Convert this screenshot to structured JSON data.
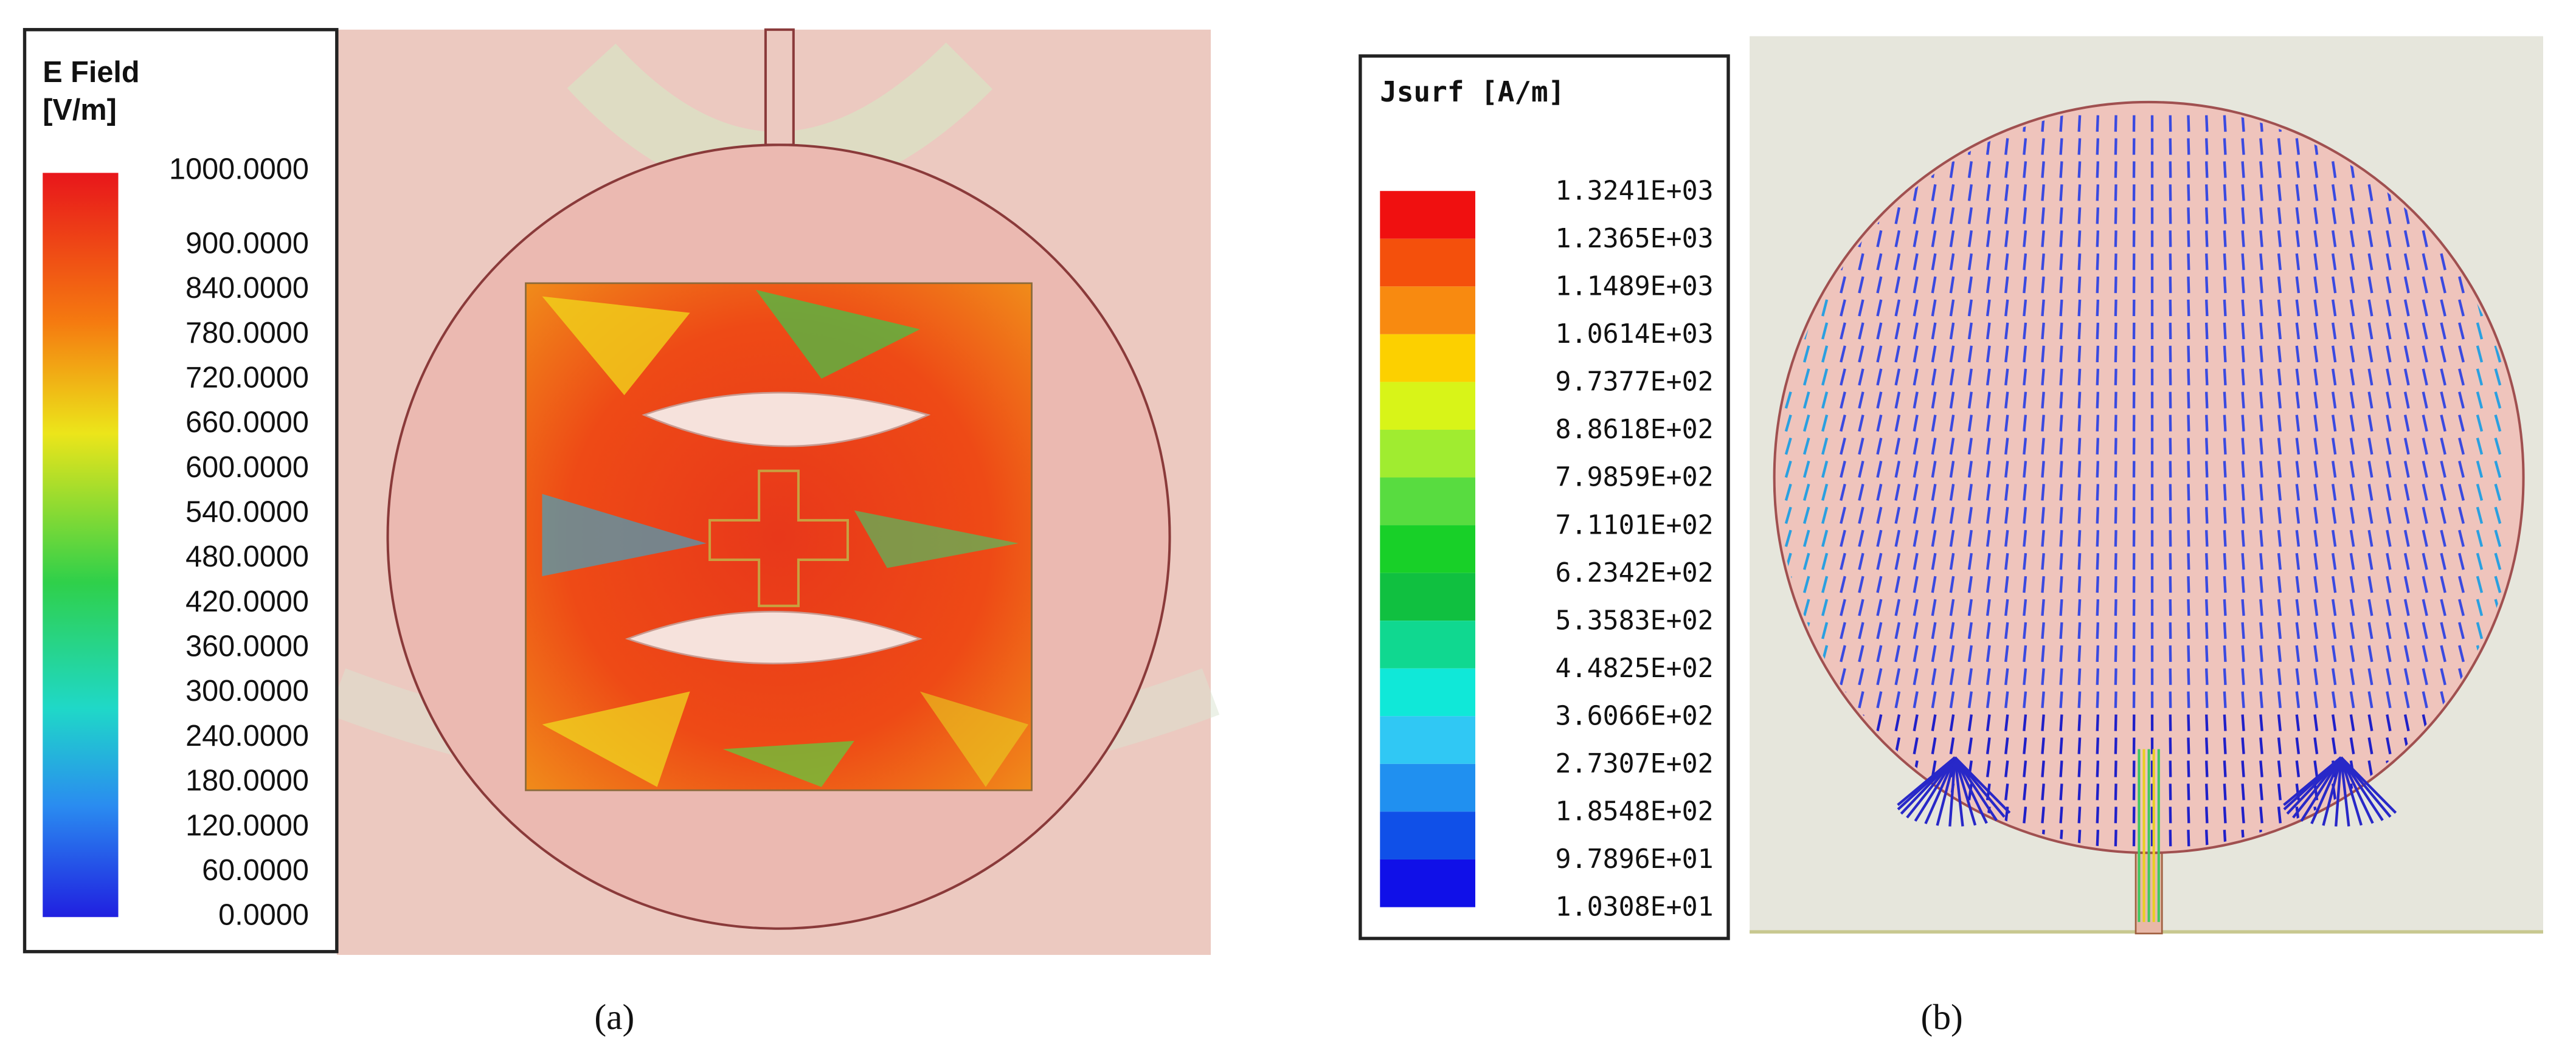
{
  "panels": [
    {
      "legend_title": [
        "E Field",
        "[V/m]"
      ],
      "scale_labels": [
        "1000.0000",
        "900.0000",
        "840.0000",
        "780.0000",
        "720.0000",
        "660.0000",
        "600.0000",
        "540.0000",
        "480.0000",
        "420.0000",
        "360.0000",
        "300.0000",
        "240.0000",
        "180.0000",
        "120.0000",
        "60.0000",
        "0.0000"
      ],
      "caption": "(a)"
    },
    {
      "legend_title": [
        "Jsurf [A/m]"
      ],
      "scale_labels": [
        "1.3241E+03",
        "1.2365E+03",
        "1.1489E+03",
        "1.0614E+03",
        "9.7377E+02",
        "8.8618E+02",
        "7.9859E+02",
        "7.1101E+02",
        "6.2342E+02",
        "5.3583E+02",
        "4.4825E+02",
        "3.6066E+02",
        "2.7307E+02",
        "1.8548E+02",
        "9.7896E+01",
        "1.0308E+01"
      ],
      "caption": "(b)"
    }
  ]
}
